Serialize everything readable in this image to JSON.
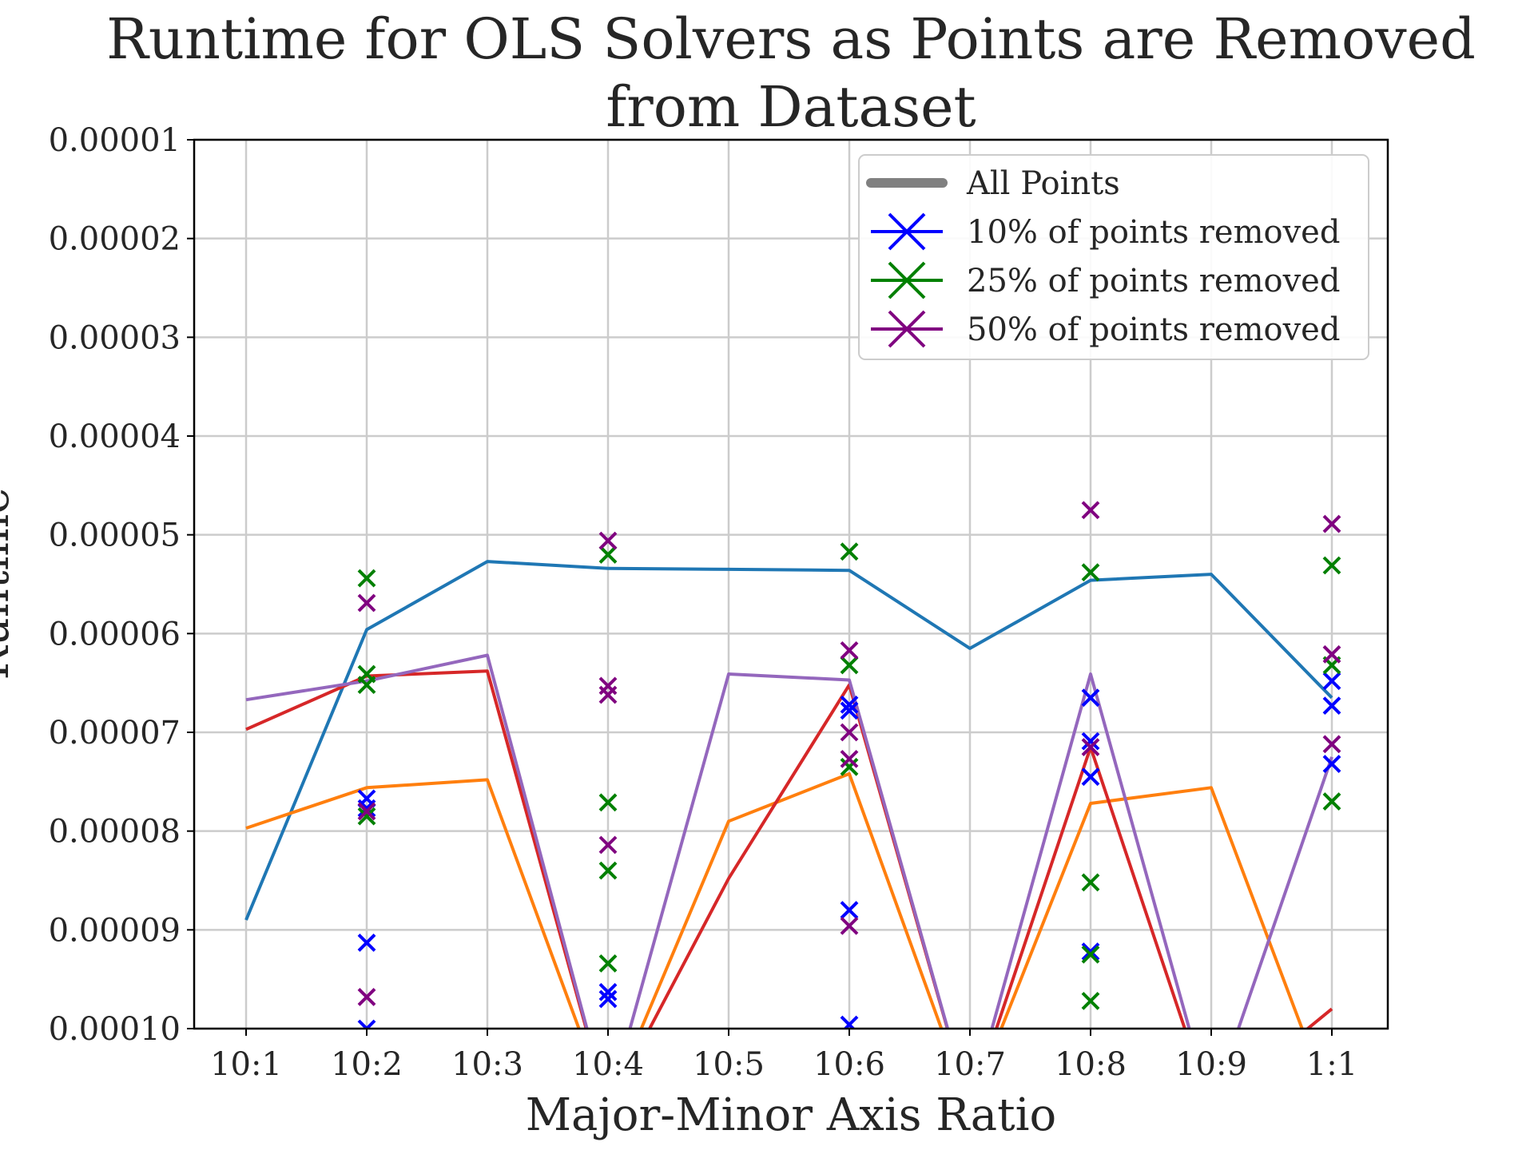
{
  "chart_data": {
    "type": "line",
    "title_line1": "Runtime for OLS Solvers as Points are Removed",
    "title_line2": "from Dataset",
    "xlabel": "Major-Minor Axis Ratio",
    "ylabel": "Runtime",
    "categories": [
      "10:1",
      "10:2",
      "10:3",
      "10:4",
      "10:5",
      "10:6",
      "10:7",
      "10:8",
      "10:9",
      "1:1"
    ],
    "y_ticks": [
      "0.00001",
      "0.00002",
      "0.00003",
      "0.00004",
      "0.00005",
      "0.00006",
      "0.00007",
      "0.00008",
      "0.00009",
      "0.00010"
    ],
    "ylim": [
      1e-05,
      0.0001
    ],
    "y_inverted": true,
    "grid": true,
    "legend_position": "top-right",
    "legend": [
      {
        "label": "All Points",
        "color": "#808080",
        "marker": "line"
      },
      {
        "label": "10% of points removed",
        "color": "#0000ff",
        "marker": "x"
      },
      {
        "label": "25% of points removed",
        "color": "#008000",
        "marker": "x"
      },
      {
        "label": "50% of points removed",
        "color": "#800080",
        "marker": "x"
      }
    ],
    "lines": [
      {
        "color": "#1f77b4",
        "values": [
          8.9e-05,
          5.96e-05,
          5.27e-05,
          5.34e-05,
          5.35e-05,
          5.36e-05,
          6.15e-05,
          5.46e-05,
          5.4e-05,
          6.65e-05
        ]
      },
      {
        "color": "#ff7f0e",
        "values": [
          7.97e-05,
          7.56e-05,
          7.48e-05,
          0.000108,
          7.9e-05,
          7.42e-05,
          0.000108,
          7.72e-05,
          7.56e-05,
          0.000108
        ]
      },
      {
        "color": "#d62728",
        "values": [
          6.97e-05,
          6.43e-05,
          6.38e-05,
          0.000108,
          8.48e-05,
          6.52e-05,
          0.000108,
          7.15e-05,
          0.000108,
          9.8e-05
        ]
      },
      {
        "color": "#9467bd",
        "values": [
          6.67e-05,
          6.48e-05,
          6.22e-05,
          0.000108,
          6.41e-05,
          6.47e-05,
          0.000108,
          6.41e-05,
          0.000108,
          7.25e-05
        ]
      }
    ],
    "scatter": [
      {
        "name": "10% of points removed",
        "color": "#0000ff",
        "points": [
          [
            1,
            7.67e-05
          ],
          [
            1,
            7.77e-05
          ],
          [
            1,
            9.13e-05
          ],
          [
            1,
            0.0001
          ],
          [
            3,
            9.63e-05
          ],
          [
            3,
            9.7e-05
          ],
          [
            5,
            6.72e-05
          ],
          [
            5,
            6.78e-05
          ],
          [
            5,
            8.8e-05
          ],
          [
            5,
            9.96e-05
          ],
          [
            7,
            6.65e-05
          ],
          [
            7,
            7.09e-05
          ],
          [
            7,
            7.45e-05
          ],
          [
            7,
            9.22e-05
          ],
          [
            9,
            6.48e-05
          ],
          [
            9,
            6.73e-05
          ],
          [
            9,
            7.32e-05
          ]
        ]
      },
      {
        "name": "25% of points removed",
        "color": "#008000",
        "points": [
          [
            1,
            5.44e-05
          ],
          [
            1,
            6.41e-05
          ],
          [
            1,
            6.52e-05
          ],
          [
            1,
            7.85e-05
          ],
          [
            3,
            5.2e-05
          ],
          [
            3,
            7.71e-05
          ],
          [
            3,
            8.4e-05
          ],
          [
            3,
            9.34e-05
          ],
          [
            5,
            5.17e-05
          ],
          [
            5,
            6.32e-05
          ],
          [
            5,
            7.35e-05
          ],
          [
            7,
            5.38e-05
          ],
          [
            7,
            8.52e-05
          ],
          [
            7,
            9.25e-05
          ],
          [
            7,
            9.72e-05
          ],
          [
            9,
            5.31e-05
          ],
          [
            9,
            6.32e-05
          ],
          [
            9,
            7.7e-05
          ]
        ]
      },
      {
        "name": "50% of points removed",
        "color": "#800080",
        "points": [
          [
            1,
            5.69e-05
          ],
          [
            1,
            7.8e-05
          ],
          [
            1,
            9.68e-05
          ],
          [
            3,
            5.06e-05
          ],
          [
            3,
            6.53e-05
          ],
          [
            3,
            6.62e-05
          ],
          [
            3,
            8.14e-05
          ],
          [
            5,
            6.17e-05
          ],
          [
            5,
            7e-05
          ],
          [
            5,
            7.27e-05
          ],
          [
            5,
            8.96e-05
          ],
          [
            7,
            4.75e-05
          ],
          [
            7,
            7.15e-05
          ],
          [
            9,
            4.89e-05
          ],
          [
            9,
            6.21e-05
          ],
          [
            9,
            7.12e-05
          ]
        ]
      }
    ]
  }
}
